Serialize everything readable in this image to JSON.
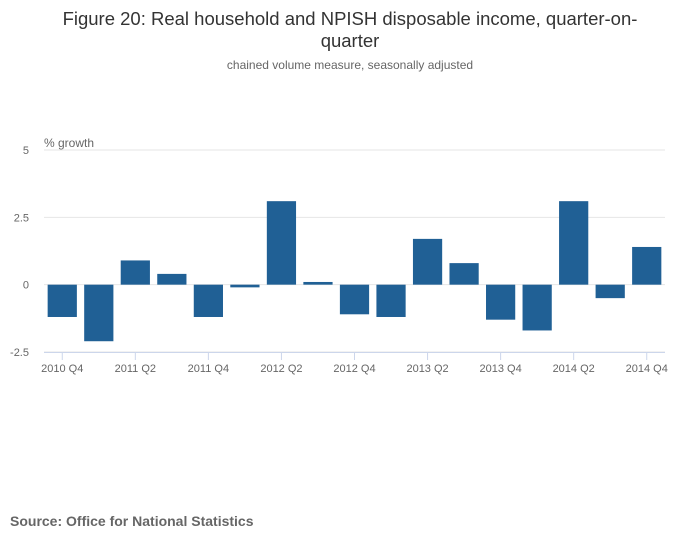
{
  "title": "Figure 20: Real household and NPISH disposable income, quarter-on-quarter",
  "subtitle": "chained volume measure, seasonally adjusted",
  "source": "Source: Office for National Statistics",
  "colors": {
    "bar": "#206095",
    "grid": "#e6e6e6",
    "axis": "#ccd6eb",
    "label": "#666666"
  },
  "chart_data": {
    "type": "bar",
    "title": "Figure 20: Real household and NPISH disposable income, quarter-on-quarter",
    "subtitle": "chained volume measure, seasonally adjusted",
    "ylabel": "% growth",
    "xlabel": "",
    "ylim": [
      -2.5,
      5
    ],
    "yticks": [
      -2.5,
      0,
      2.5,
      5
    ],
    "ytick_labels": [
      "-2.5",
      "0",
      "2.5",
      "5"
    ],
    "grid": true,
    "legend": "none",
    "categories": [
      "2010 Q4",
      "2011 Q1",
      "2011 Q2",
      "2011 Q3",
      "2011 Q4",
      "2012 Q1",
      "2012 Q2",
      "2012 Q3",
      "2012 Q4",
      "2013 Q1",
      "2013 Q2",
      "2013 Q3",
      "2013 Q4",
      "2014 Q1",
      "2014 Q2",
      "2014 Q3",
      "2014 Q4"
    ],
    "visible_tick_labels": [
      "2010 Q4",
      "2011 Q2",
      "2011 Q4",
      "2012 Q2",
      "2012 Q4",
      "2013 Q2",
      "2013 Q4",
      "2014 Q2",
      "2014 Q4"
    ],
    "values": [
      -1.2,
      -2.1,
      0.9,
      0.4,
      -1.2,
      -0.1,
      3.1,
      0.1,
      -1.1,
      -1.2,
      1.7,
      0.8,
      -1.3,
      -1.7,
      3.1,
      -0.5,
      1.4
    ]
  }
}
